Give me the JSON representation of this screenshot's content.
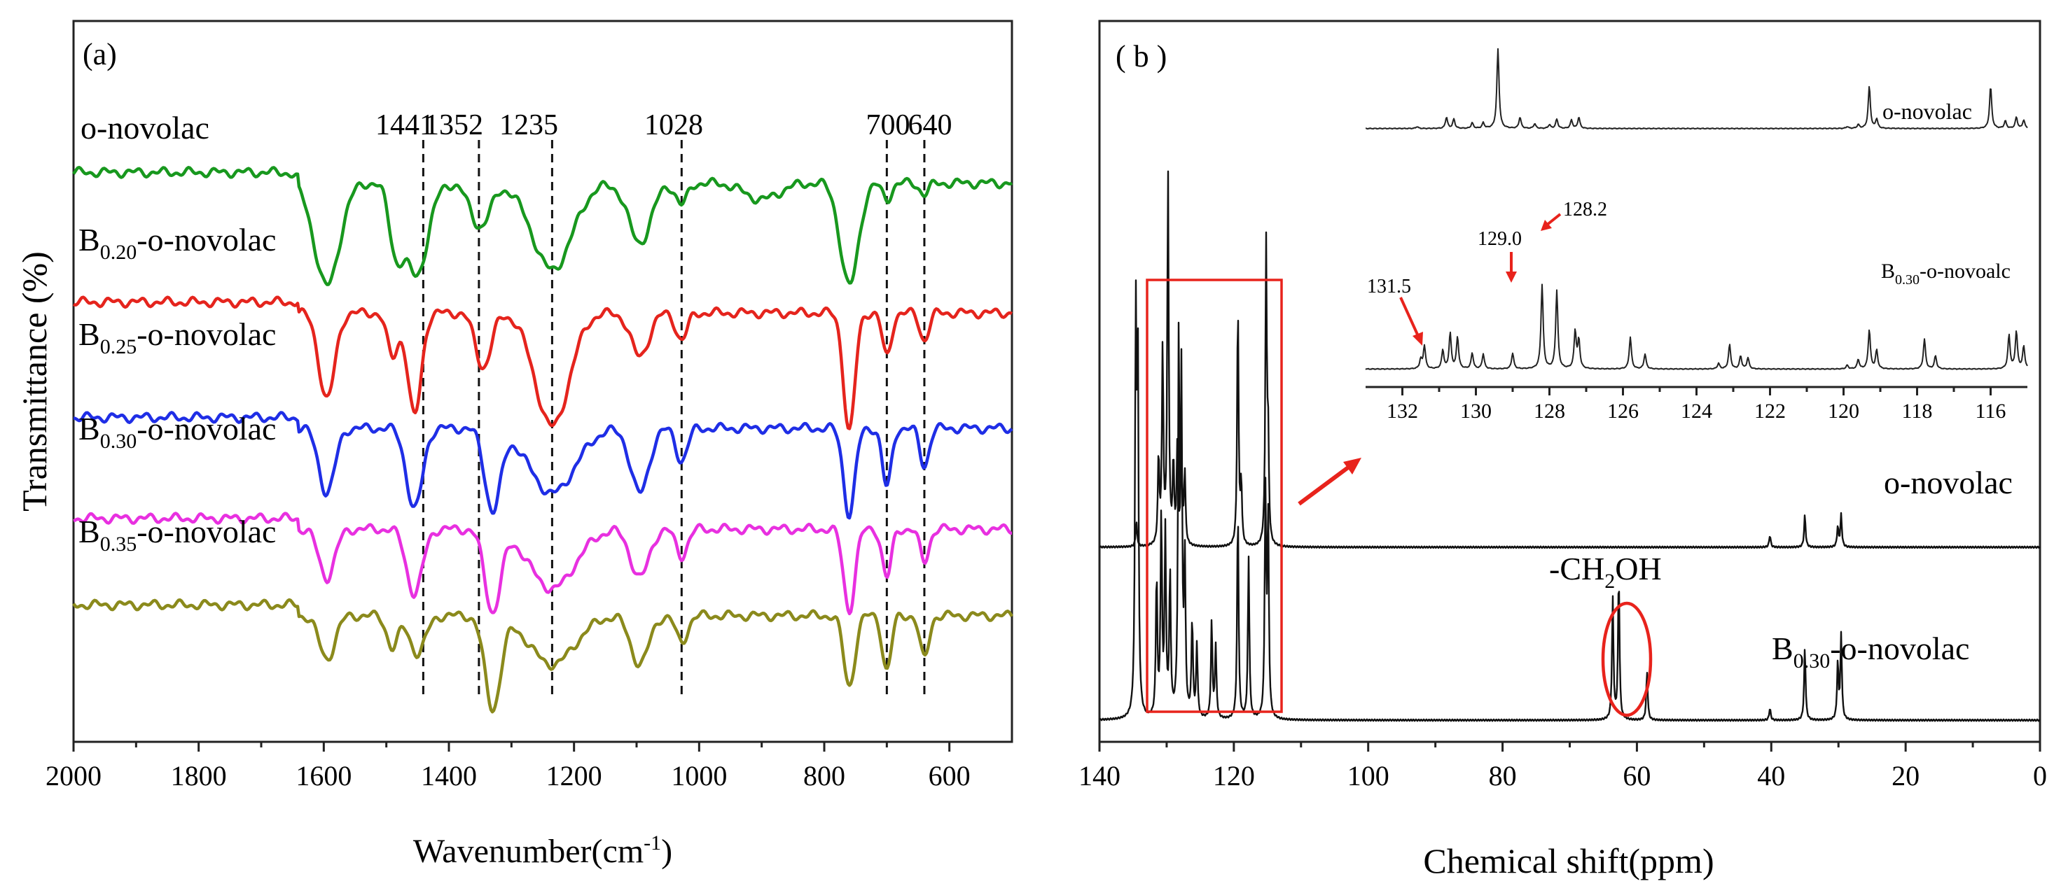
{
  "chart_data": [
    {
      "type": "line",
      "panel_label": "(a)",
      "xlabel": "Wavenumber(cm",
      "xlabel_sup": "-1",
      "xlabel_close": ")",
      "ylabel": "Transmittance (%)",
      "xlim": [
        2000,
        500
      ],
      "x_ticks": [
        2000,
        1800,
        1600,
        1400,
        1200,
        1000,
        800,
        600
      ],
      "reference_lines": [
        {
          "x": 1441,
          "label": "1441"
        },
        {
          "x": 1352,
          "label": "1352"
        },
        {
          "x": 1235,
          "label": "1235"
        },
        {
          "x": 1028,
          "label": "1028"
        },
        {
          "x": 700,
          "label": "700"
        },
        {
          "x": 640,
          "label": "640"
        }
      ],
      "series": [
        {
          "name": "o-novolac",
          "base": "",
          "sub": "",
          "suffix": "o-novolac",
          "color": "#18981e",
          "offset": 0.79,
          "bands": [
            [
              1595,
              0.19,
              22
            ],
            [
              1485,
              0.11,
              12
            ],
            [
              1452,
              0.17,
              20
            ],
            [
              1350,
              0.08,
              18
            ],
            [
              1235,
              0.16,
              35
            ],
            [
              1095,
              0.11,
              20
            ],
            [
              1028,
              0.04,
              10
            ],
            [
              900,
              0.03,
              30
            ],
            [
              760,
              0.19,
              16
            ],
            [
              700,
              0.03,
              8
            ],
            [
              640,
              0.02,
              8
            ]
          ]
        },
        {
          "name": "B0.20-o-novolac",
          "base": "B",
          "sub": "0.20",
          "suffix": "-o-novolac",
          "color": "#e5241d",
          "offset": 0.61,
          "bands": [
            [
              1595,
              0.16,
              14
            ],
            [
              1490,
              0.08,
              10
            ],
            [
              1455,
              0.19,
              12
            ],
            [
              1345,
              0.1,
              14
            ],
            [
              1235,
              0.21,
              30
            ],
            [
              1095,
              0.08,
              16
            ],
            [
              1028,
              0.05,
              10
            ],
            [
              760,
              0.22,
              10
            ],
            [
              700,
              0.08,
              8
            ],
            [
              640,
              0.05,
              8
            ]
          ]
        },
        {
          "name": "B0.25-o-novolac",
          "base": "B",
          "sub": "0.25",
          "suffix": "-o-novolac",
          "color": "#1f2ee6",
          "offset": 0.45,
          "bands": [
            [
              1595,
              0.12,
              14
            ],
            [
              1455,
              0.15,
              14
            ],
            [
              1330,
              0.15,
              14
            ],
            [
              1235,
              0.12,
              40
            ],
            [
              1095,
              0.12,
              16
            ],
            [
              1028,
              0.06,
              10
            ],
            [
              760,
              0.16,
              10
            ],
            [
              700,
              0.11,
              8
            ],
            [
              640,
              0.07,
              8
            ]
          ]
        },
        {
          "name": "B0.30-o-novolac",
          "base": "B",
          "sub": "0.30",
          "suffix": "-o-novolac",
          "color": "#e830e0",
          "offset": 0.31,
          "bands": [
            [
              1595,
              0.09,
              14
            ],
            [
              1455,
              0.12,
              14
            ],
            [
              1330,
              0.15,
              14
            ],
            [
              1235,
              0.11,
              40
            ],
            [
              1095,
              0.09,
              16
            ],
            [
              1028,
              0.05,
              10
            ],
            [
              760,
              0.15,
              10
            ],
            [
              700,
              0.09,
              8
            ],
            [
              640,
              0.06,
              8
            ]
          ]
        },
        {
          "name": "B0.35-o-novolac",
          "base": "B",
          "sub": "0.35",
          "suffix": "-o-novolac",
          "color": "#8b8a1c",
          "offset": 0.19,
          "bands": [
            [
              1595,
              0.08,
              14
            ],
            [
              1490,
              0.06,
              10
            ],
            [
              1450,
              0.07,
              14
            ],
            [
              1330,
              0.17,
              14
            ],
            [
              1235,
              0.09,
              40
            ],
            [
              1095,
              0.09,
              16
            ],
            [
              1028,
              0.05,
              10
            ],
            [
              760,
              0.13,
              10
            ],
            [
              700,
              0.1,
              8
            ],
            [
              640,
              0.08,
              8
            ]
          ]
        }
      ]
    },
    {
      "type": "line",
      "panel_label": "( b )",
      "xlabel": "Chemical shift(ppm)",
      "xlim": [
        140,
        0
      ],
      "x_ticks": [
        140,
        120,
        100,
        80,
        60,
        40,
        20,
        0
      ],
      "annotations": [
        {
          "text": "-CH",
          "sub": "2",
          "tail": "OH"
        },
        {
          "text": "B",
          "sub": "0.30",
          "tail": "-o-novolac"
        },
        {
          "text": "o-novolac"
        }
      ],
      "series": [
        {
          "name": "o-novolac",
          "offset": 0.27,
          "peaks": [
            [
              134.5,
              0.06
            ],
            [
              131.2,
              0.22
            ],
            [
              130.6,
              0.48
            ],
            [
              129.8,
              0.92
            ],
            [
              129.0,
              0.2
            ],
            [
              128.4,
              0.25
            ],
            [
              127.8,
              0.22
            ],
            [
              127.3,
              0.18
            ],
            [
              119.4,
              0.6
            ],
            [
              118.9,
              0.15
            ],
            [
              115.2,
              0.74
            ],
            [
              114.9,
              0.25
            ],
            [
              40.2,
              0.03
            ],
            [
              35.0,
              0.08
            ],
            [
              30.1,
              0.05
            ],
            [
              29.6,
              0.08
            ]
          ]
        },
        {
          "name": "B0.30-o-novolac",
          "offset": 0.03,
          "peaks": [
            [
              134.6,
              0.95
            ],
            [
              134.3,
              0.9
            ],
            [
              131.5,
              0.35
            ],
            [
              130.8,
              0.5
            ],
            [
              130.2,
              0.45
            ],
            [
              129.5,
              0.35
            ],
            [
              128.2,
              0.92
            ],
            [
              127.8,
              0.8
            ],
            [
              127.3,
              0.38
            ],
            [
              126.2,
              0.24
            ],
            [
              125.5,
              0.18
            ],
            [
              123.3,
              0.24
            ],
            [
              122.7,
              0.18
            ],
            [
              119.4,
              0.52
            ],
            [
              117.8,
              0.4
            ],
            [
              115.3,
              0.55
            ],
            [
              114.9,
              0.5
            ],
            [
              63.6,
              0.3
            ],
            [
              62.7,
              0.36
            ],
            [
              58.5,
              0.12
            ],
            [
              40.2,
              0.03
            ],
            [
              35.0,
              0.18
            ],
            [
              30.1,
              0.14
            ],
            [
              29.6,
              0.21
            ]
          ]
        }
      ],
      "inset": {
        "xlim": [
          133,
          115
        ],
        "x_ticks": [
          132,
          130,
          128,
          126,
          124,
          122,
          120,
          118,
          116
        ],
        "labels": [
          "131.5",
          "129.0",
          "128.2"
        ],
        "series_labels": [
          "o-novolac",
          "B0.30-o-novoalc"
        ],
        "label_parts": {
          "base": "B",
          "sub": "0.30",
          "suffix": "-o-novoalc"
        },
        "series": [
          {
            "name": "o-novolac",
            "offset": 0.72,
            "peaks": [
              [
                131.6,
                0.02
              ],
              [
                130.8,
                0.12
              ],
              [
                130.6,
                0.1
              ],
              [
                130.1,
                0.06
              ],
              [
                129.8,
                0.06
              ],
              [
                128.8,
                0.12
              ],
              [
                128.4,
                0.05
              ],
              [
                128.0,
                0.04
              ],
              [
                127.8,
                0.1
              ],
              [
                127.4,
                0.09
              ],
              [
                127.2,
                0.12
              ],
              [
                129.4,
                0.85
              ],
              [
                119.9,
                0.02
              ],
              [
                119.6,
                0.04
              ],
              [
                119.3,
                0.45
              ],
              [
                119.1,
                0.1
              ],
              [
                116.0,
                0.45
              ],
              [
                115.6,
                0.08
              ],
              [
                115.3,
                0.12
              ],
              [
                115.1,
                0.09
              ]
            ]
          },
          {
            "name": "B0.30-o-novolac",
            "offset": 0.05,
            "peaks": [
              [
                131.5,
                0.1
              ],
              [
                131.4,
                0.25
              ],
              [
                130.9,
                0.2
              ],
              [
                130.7,
                0.38
              ],
              [
                130.5,
                0.34
              ],
              [
                130.1,
                0.17
              ],
              [
                129.8,
                0.16
              ],
              [
                129.0,
                0.17
              ],
              [
                128.2,
                0.9
              ],
              [
                127.8,
                0.84
              ],
              [
                127.3,
                0.4
              ],
              [
                127.2,
                0.3
              ],
              [
                125.8,
                0.34
              ],
              [
                125.4,
                0.16
              ],
              [
                123.4,
                0.06
              ],
              [
                123.1,
                0.26
              ],
              [
                122.8,
                0.14
              ],
              [
                122.6,
                0.12
              ],
              [
                119.9,
                0.04
              ],
              [
                119.6,
                0.1
              ],
              [
                119.3,
                0.42
              ],
              [
                119.1,
                0.2
              ],
              [
                117.8,
                0.32
              ],
              [
                117.5,
                0.14
              ],
              [
                115.5,
                0.36
              ],
              [
                115.3,
                0.4
              ],
              [
                115.1,
                0.24
              ]
            ]
          }
        ]
      }
    }
  ]
}
